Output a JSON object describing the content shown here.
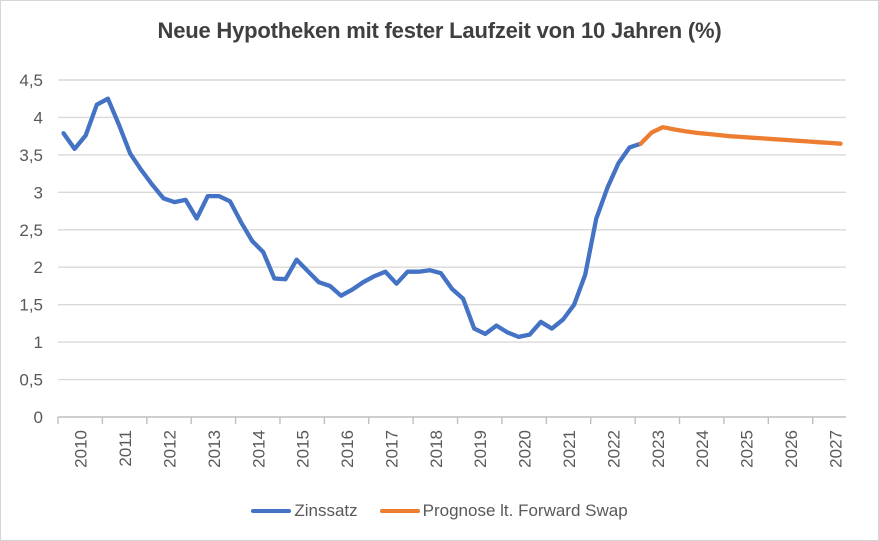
{
  "chart_data": {
    "type": "line",
    "title": "Neue Hypotheken mit fester Laufzeit von 10 Jahren (%)",
    "interval": "quarterly",
    "x_start": "2010 Q1",
    "x_end": "2027 Q3",
    "total_points": 71,
    "x_axis": {
      "tick_years": [
        "2010",
        "2011",
        "2012",
        "2013",
        "2014",
        "2015",
        "2016",
        "2017",
        "2018",
        "2019",
        "2020",
        "2021",
        "2022",
        "2023",
        "2024",
        "2025",
        "2026",
        "2027"
      ],
      "label_rotation_deg": -90
    },
    "y_axis": {
      "min": 0,
      "max": 4.5,
      "step": 0.5,
      "tick_labels": [
        "0",
        "0,5",
        "1",
        "1,5",
        "2",
        "2,5",
        "3",
        "3,5",
        "4",
        "4,5"
      ]
    },
    "grid": true,
    "legend_position": "bottom",
    "series": [
      {
        "name": "Zinssatz",
        "color": "#4472C4",
        "start_index": 0,
        "values": [
          3.79,
          3.58,
          3.76,
          4.17,
          4.25,
          3.9,
          3.52,
          3.3,
          3.1,
          2.92,
          2.87,
          2.9,
          2.65,
          2.95,
          2.95,
          2.88,
          2.6,
          2.35,
          2.2,
          1.85,
          1.84,
          2.1,
          1.95,
          1.8,
          1.75,
          1.62,
          1.7,
          1.8,
          1.88,
          1.94,
          1.78,
          1.94,
          1.94,
          1.96,
          1.92,
          1.71,
          1.58,
          1.18,
          1.11,
          1.22,
          1.13,
          1.07,
          1.1,
          1.27,
          1.18,
          1.3,
          1.5,
          1.9,
          2.65,
          3.06,
          3.39,
          3.6,
          3.65
        ]
      },
      {
        "name": "Prognose lt. Forward Swap",
        "color": "#ED7D31",
        "start_index": 52,
        "values": [
          3.65,
          3.8,
          3.87,
          3.84,
          3.815,
          3.795,
          3.78,
          3.765,
          3.75,
          3.74,
          3.73,
          3.72,
          3.71,
          3.7,
          3.69,
          3.68,
          3.67,
          3.66,
          3.65
        ]
      }
    ]
  },
  "colors": {
    "series_blue": "#4472C4",
    "series_orange": "#ED7D31",
    "gridline": "#D9D9D9",
    "axis": "#BFBFBF",
    "axis_label": "#595959",
    "title": "#3F3F3F",
    "background": "#FFFFFF",
    "border": "#D5D5D5"
  }
}
